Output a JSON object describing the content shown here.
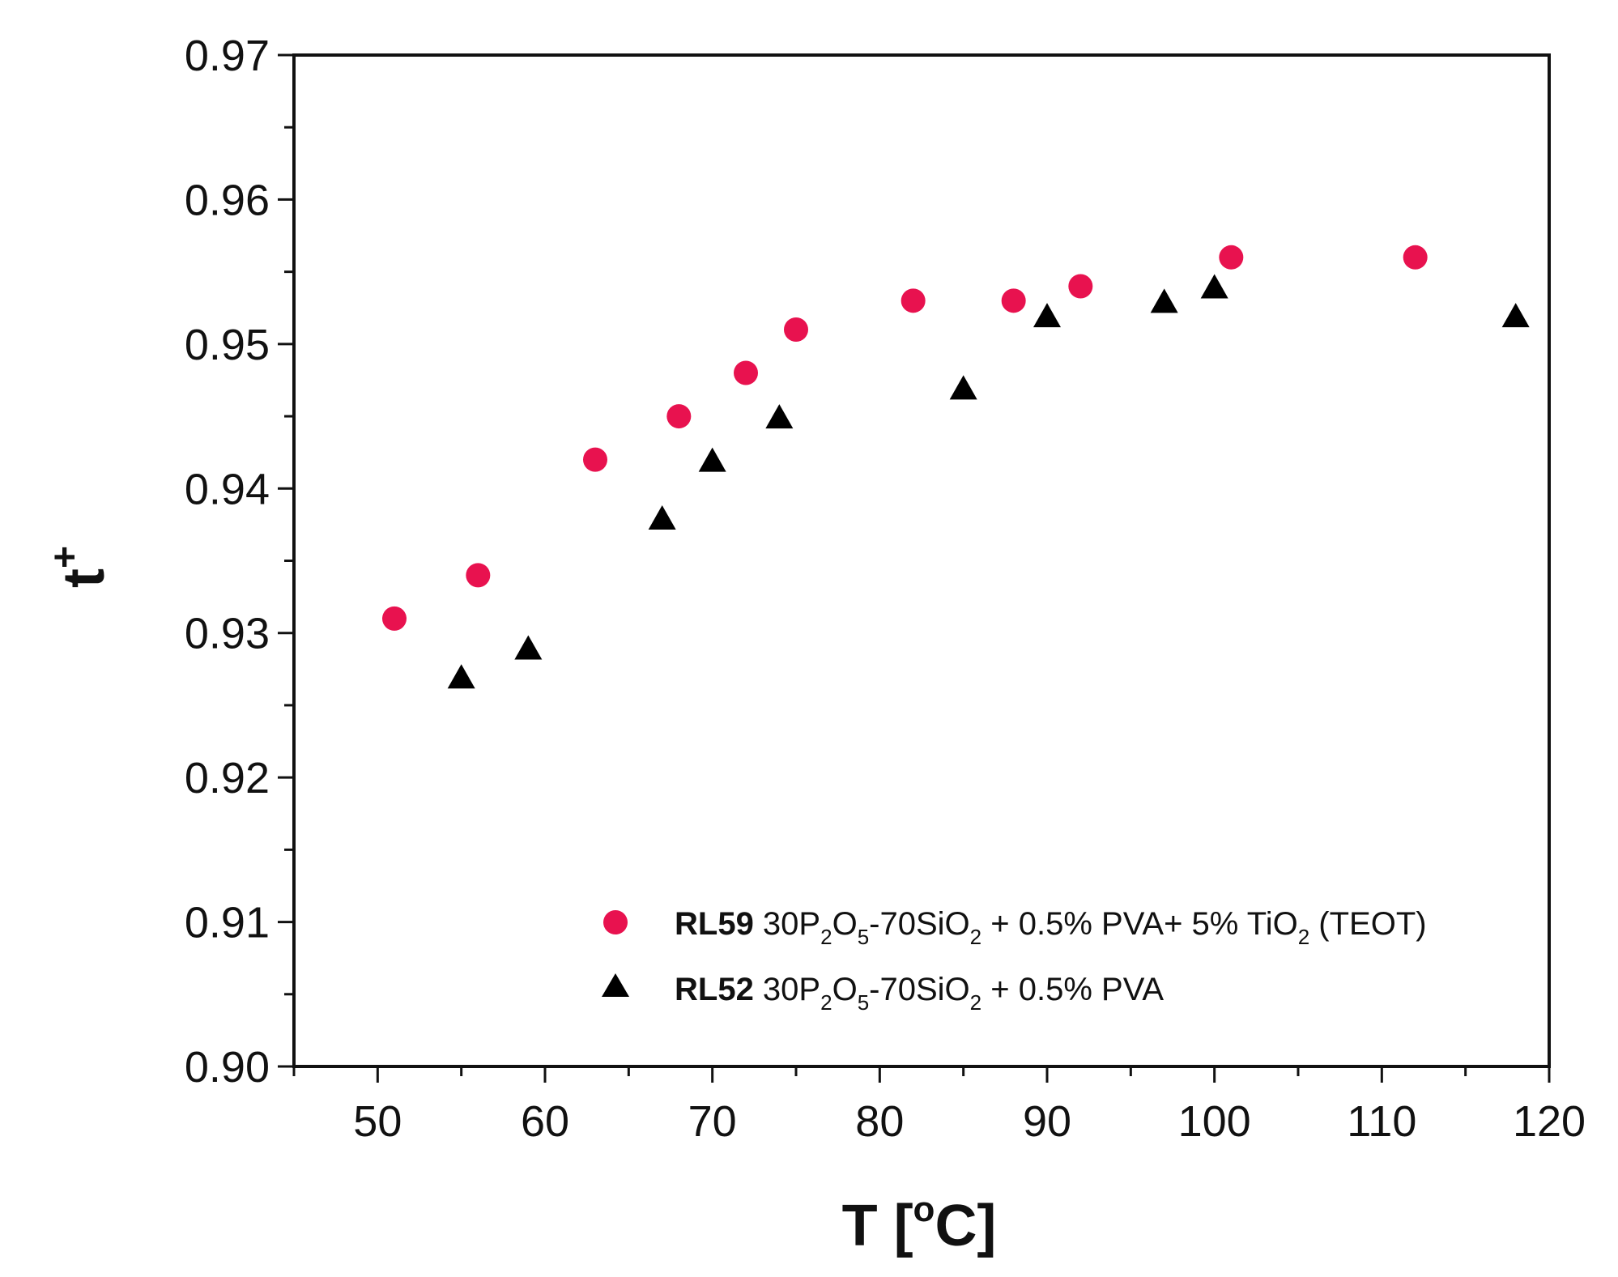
{
  "chart_data": {
    "type": "scatter",
    "title": "",
    "xlabel": "T",
    "xlabel_unit_prefix": "[",
    "xlabel_unit_sup": "o",
    "xlabel_unit_main": "C]",
    "ylabel": "t",
    "ylabel_sup": "+",
    "xlim": [
      45,
      120
    ],
    "ylim": [
      0.9,
      0.97
    ],
    "xticks": [
      50,
      60,
      70,
      80,
      90,
      100,
      110,
      120
    ],
    "yticks": [
      0.9,
      0.91,
      0.92,
      0.93,
      0.94,
      0.95,
      0.96,
      0.97
    ],
    "xtick_labels": [
      "50",
      "60",
      "70",
      "80",
      "90",
      "100",
      "110",
      "120"
    ],
    "ytick_labels": [
      "0.90",
      "0.91",
      "0.92",
      "0.93",
      "0.94",
      "0.95",
      "0.96",
      "0.97"
    ],
    "grid": false,
    "legend_position": "bottom-right",
    "series": [
      {
        "name": "RL59",
        "marker": "circle",
        "color": "#e8124f",
        "legend_bold": "RL59",
        "legend_text": "30P2O5-70SiO2 + 0.5% PVA+ 5% TiO2 (TEOT)",
        "x": [
          51,
          56,
          63,
          68,
          72,
          75,
          82,
          88,
          92,
          101,
          112
        ],
        "y": [
          0.931,
          0.934,
          0.942,
          0.945,
          0.948,
          0.951,
          0.953,
          0.953,
          0.954,
          0.956,
          0.956
        ]
      },
      {
        "name": "RL52",
        "marker": "triangle",
        "color": "#000000",
        "legend_bold": "RL52",
        "legend_text": "30P2O5-70SiO2 + 0.5% PVA",
        "x": [
          55,
          59,
          67,
          70,
          74,
          85,
          90,
          97,
          100,
          118
        ],
        "y": [
          0.927,
          0.929,
          0.938,
          0.942,
          0.945,
          0.947,
          0.952,
          0.953,
          0.954,
          0.952
        ]
      }
    ]
  }
}
